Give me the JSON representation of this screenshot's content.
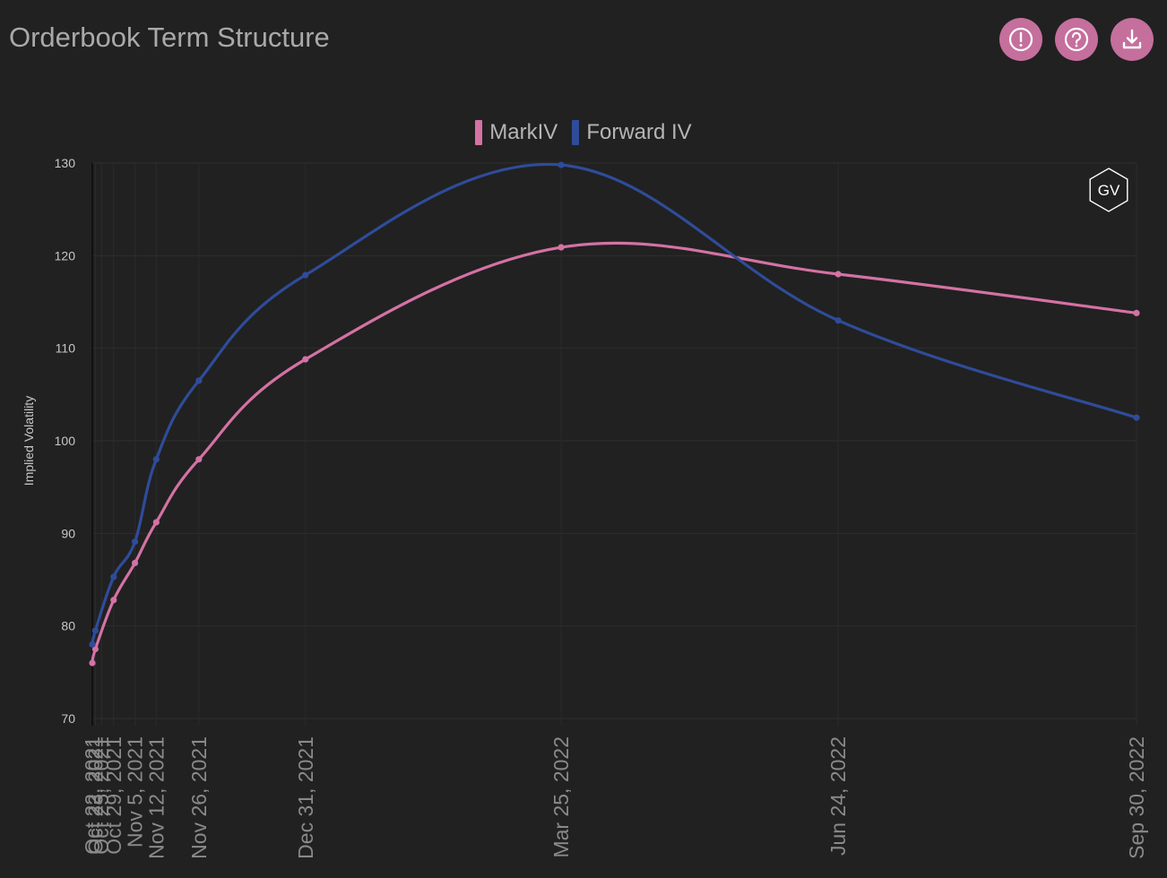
{
  "header": {
    "title": "Orderbook Term Structure",
    "buttons": [
      {
        "icon": "info-icon"
      },
      {
        "icon": "help-icon"
      },
      {
        "icon": "download-icon"
      }
    ]
  },
  "colors": {
    "background": "#212121",
    "accent": "#c56f9d",
    "markiv": "#d472a4",
    "forward": "#2f4c9a",
    "grid": "#2d2d2d",
    "text": "#b5b5b5"
  },
  "watermark": "GV",
  "chart_data": {
    "type": "line",
    "title": "",
    "ylabel": "Implied Volatility",
    "xlabel": "",
    "ylim": [
      70,
      130
    ],
    "yticks": [
      70,
      80,
      90,
      100,
      110,
      120,
      130
    ],
    "x": [
      "2021-10-22",
      "2021-10-23",
      "2021-10-25",
      "2021-10-29",
      "2021-11-05",
      "2021-11-12",
      "2021-11-26",
      "2021-12-31",
      "2022-03-25",
      "2022-06-24",
      "2022-09-30"
    ],
    "xtick_labels": [
      "Oct 22, 2021",
      "Oct 23, 2021",
      "Oct 25, 2021",
      "Oct 29, 2021",
      "Nov 5, 2021",
      "Nov 12, 2021",
      "Nov 26, 2021",
      "Dec 31, 2021",
      "Mar 25, 2022",
      "Jun 24, 2022",
      "Sep 30, 2022"
    ],
    "legend_position": "top",
    "grid": true,
    "series": [
      {
        "name": "MarkIV",
        "color": "#d472a4",
        "values": [
          76.0,
          77.5,
          null,
          82.8,
          86.8,
          91.2,
          98.0,
          108.8,
          120.9,
          118.0,
          113.8
        ]
      },
      {
        "name": "Forward IV",
        "color": "#2f4c9a",
        "values": [
          78.0,
          79.5,
          null,
          85.3,
          89.1,
          98.0,
          106.5,
          117.9,
          129.8,
          113.0,
          102.5
        ]
      }
    ]
  }
}
